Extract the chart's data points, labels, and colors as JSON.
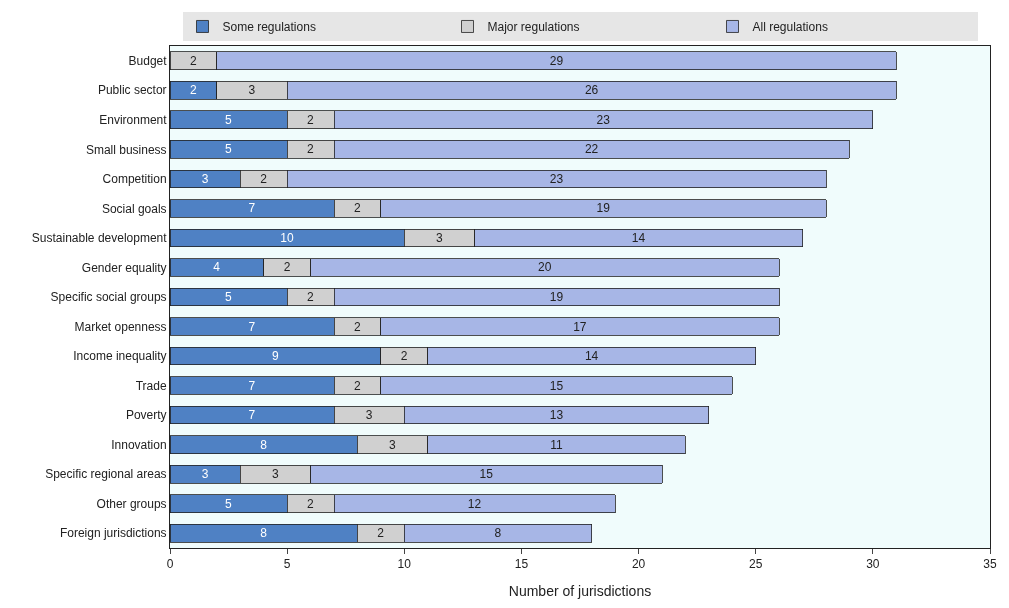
{
  "chart_data": {
    "type": "bar",
    "orientation": "horizontal",
    "stacked": true,
    "xlabel": "Number of jurisdictions",
    "categories": [
      "Budget",
      "Public sector",
      "Environment",
      "Small business",
      "Competition",
      "Social goals",
      "Sustainable development",
      "Gender equality",
      "Specific social groups",
      "Market openness",
      "Income inequality",
      "Trade",
      "Poverty",
      "Innovation",
      "Specific regional areas",
      "Other groups",
      "Foreign jurisdictions"
    ],
    "series": [
      {
        "name": "Some regulations",
        "color": "#4f81c4",
        "values": [
          0,
          2,
          5,
          5,
          3,
          7,
          10,
          4,
          5,
          7,
          9,
          7,
          7,
          8,
          3,
          5,
          8
        ],
        "value_labels": [
          null,
          "2",
          "5",
          "5",
          "3",
          "7",
          "10",
          "4",
          "5",
          "7",
          "9",
          "7",
          "7",
          "8",
          "3",
          "5",
          "8"
        ]
      },
      {
        "name": "Major regulations",
        "color": "#d0d0d0",
        "values": [
          2,
          3,
          2,
          2,
          2,
          2,
          3,
          2,
          2,
          2,
          2,
          2,
          3,
          3,
          3,
          2,
          2
        ],
        "value_labels": [
          "2",
          "3",
          "2",
          "2",
          "2",
          "2",
          "3",
          "2",
          "2",
          "2",
          "2",
          "2",
          "3",
          "3",
          "3",
          "2",
          "2"
        ]
      },
      {
        "name": "All regulations",
        "color": "#a7b6e6",
        "values": [
          29,
          26,
          23,
          22,
          23,
          19,
          14,
          20,
          19,
          17,
          14,
          15,
          13,
          11,
          15,
          12,
          8
        ],
        "value_labels": [
          "29",
          "26",
          "23",
          "22",
          "23",
          "19",
          "14",
          "20",
          "19",
          "17",
          "14",
          "15",
          "13",
          "11",
          "15",
          "12",
          "8"
        ]
      }
    ],
    "xlim": [
      0,
      35
    ],
    "xticks": [
      0,
      5,
      10,
      15,
      20,
      25,
      30,
      35
    ],
    "grid": false,
    "legend": "top"
  }
}
